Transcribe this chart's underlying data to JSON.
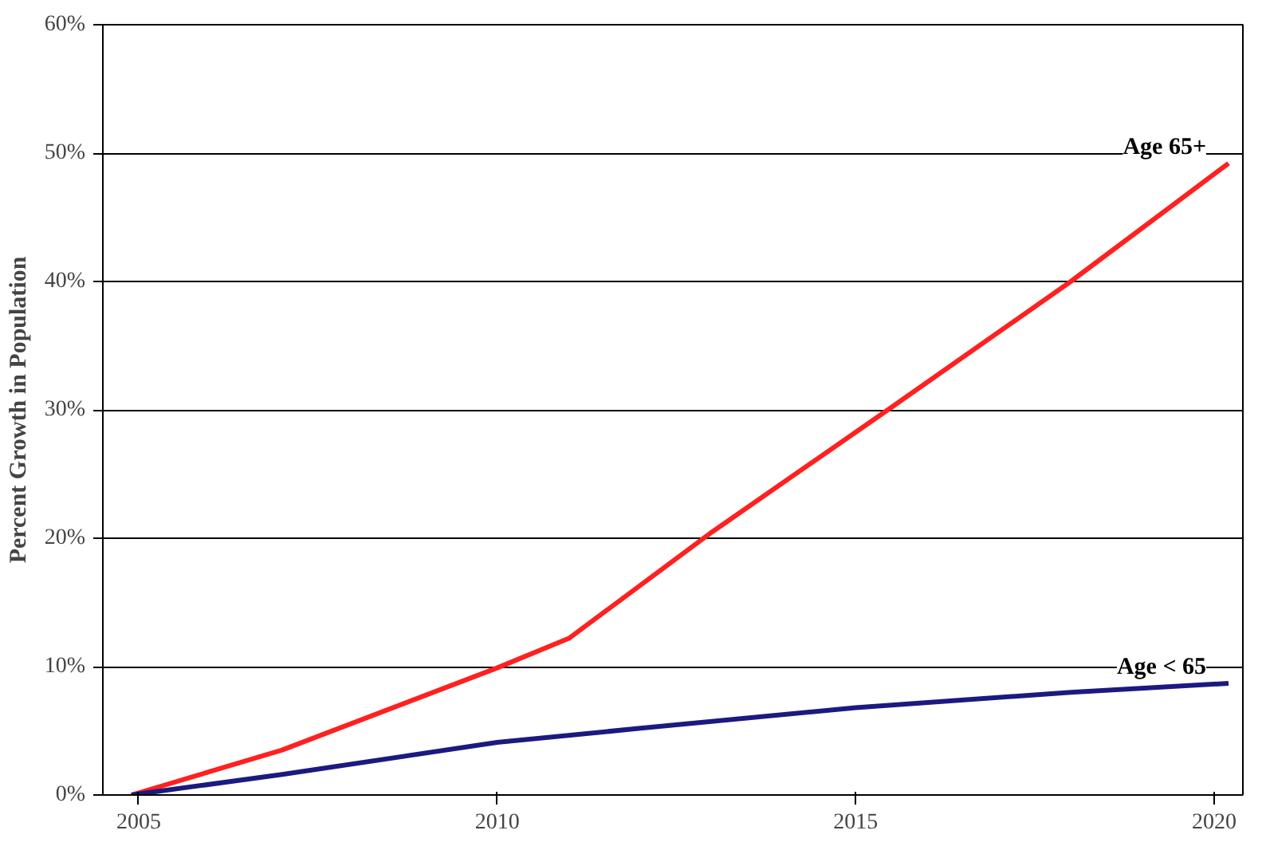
{
  "chart_data": {
    "type": "line",
    "ylabel": "Percent Growth in Population",
    "xlim": [
      2004.5,
      2020.4
    ],
    "xticks": [
      2005,
      2010,
      2015,
      2020
    ],
    "ylim": [
      0,
      60
    ],
    "yticks": [
      {
        "value": 0,
        "label": "0%"
      },
      {
        "value": 10,
        "label": "10%"
      },
      {
        "value": 20,
        "label": "20%"
      },
      {
        "value": 30,
        "label": "30%"
      },
      {
        "value": 40,
        "label": "40%"
      },
      {
        "value": 50,
        "label": "50%"
      },
      {
        "value": 60,
        "label": "60%"
      }
    ],
    "grid": "y",
    "series": [
      {
        "name": "Age 65+",
        "color": "#ff2020",
        "x": [
          2004.9,
          2007,
          2010,
          2011,
          2013,
          2015.5,
          2018,
          2020.2
        ],
        "values": [
          0,
          3.5,
          9.9,
          12.2,
          20.5,
          30.2,
          40,
          49.2
        ]
      },
      {
        "name": "Age < 65",
        "color": "#1a1a80",
        "x": [
          2004.9,
          2007,
          2010,
          2012,
          2015,
          2018,
          2020.2
        ],
        "values": [
          0,
          1.6,
          4.1,
          5.2,
          6.8,
          8,
          8.7
        ]
      }
    ]
  }
}
